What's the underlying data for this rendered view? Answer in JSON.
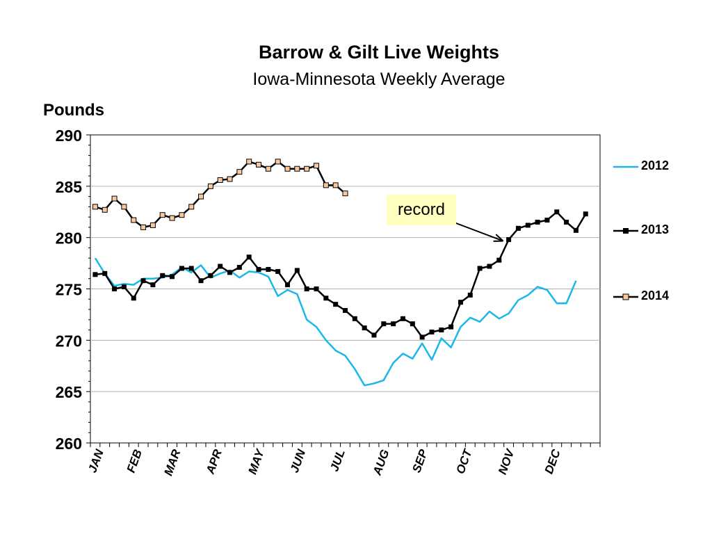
{
  "chart_data": {
    "type": "line",
    "title": "Barrow & Gilt Live Weights",
    "subtitle": "Iowa-Minnesota Weekly Average",
    "ylabel": "Pounds",
    "ylim": [
      260,
      290
    ],
    "yticks": [
      260,
      265,
      270,
      275,
      280,
      285,
      290
    ],
    "month_labels": [
      "JAN",
      "FEB",
      "MAR",
      "APR",
      "MAY",
      "JUN",
      "JUL",
      "AUG",
      "SEP",
      "OCT",
      "NOV",
      "DEC"
    ],
    "x_weeks": [
      1,
      2,
      3,
      4,
      5,
      6,
      7,
      8,
      9,
      10,
      11,
      12,
      13,
      14,
      15,
      16,
      17,
      18,
      19,
      20,
      21,
      22,
      23,
      24,
      25,
      26,
      27,
      28,
      29,
      30,
      31,
      32,
      33,
      34,
      35,
      36,
      37,
      38,
      39,
      40,
      41,
      42,
      43,
      44,
      45,
      46,
      47,
      48,
      49,
      50,
      51,
      52,
      53
    ],
    "grid": true,
    "legend_position": "right",
    "annotation": {
      "text": "record",
      "target_series": "2013",
      "target_week": 44
    },
    "series": [
      {
        "name": "2012",
        "color": "#1ab8e8",
        "marker": "none",
        "values": [
          278.0,
          276.5,
          275.3,
          275.5,
          275.4,
          276.0,
          276.0,
          276.1,
          276.4,
          277.1,
          276.6,
          277.3,
          276.1,
          276.5,
          276.8,
          276.1,
          276.7,
          276.6,
          276.2,
          274.3,
          274.9,
          274.5,
          272.0,
          271.3,
          270.0,
          269.0,
          268.5,
          267.2,
          265.6,
          265.8,
          266.1,
          267.8,
          268.7,
          268.2,
          269.7,
          268.1,
          270.2,
          269.3,
          271.3,
          272.2,
          271.8,
          272.8,
          272.1,
          272.6,
          273.9,
          274.4,
          275.2,
          274.9,
          273.6,
          273.6,
          275.8
        ]
      },
      {
        "name": "2013",
        "color": "#000000",
        "marker": "square-filled",
        "values": [
          276.4,
          276.5,
          275.0,
          275.2,
          274.1,
          275.8,
          275.4,
          276.3,
          276.2,
          277.0,
          277.0,
          275.8,
          276.3,
          277.2,
          276.6,
          277.1,
          278.1,
          276.9,
          276.9,
          276.7,
          275.4,
          276.8,
          275.0,
          275.0,
          274.1,
          273.5,
          272.9,
          272.1,
          271.2,
          270.5,
          271.6,
          271.6,
          272.1,
          271.6,
          270.3,
          270.8,
          271.0,
          271.3,
          273.7,
          274.4,
          277.0,
          277.2,
          277.8,
          279.8,
          280.9,
          281.2,
          281.5,
          281.7,
          282.5,
          281.5,
          280.7,
          282.3
        ]
      },
      {
        "name": "2014",
        "color": "#000000",
        "fill": "#f8c8a0",
        "marker": "square-open",
        "values": [
          283.0,
          282.7,
          283.8,
          283.0,
          281.7,
          281.0,
          281.2,
          282.2,
          281.9,
          282.2,
          283.0,
          284.0,
          285.0,
          285.6,
          285.7,
          286.4,
          287.4,
          287.1,
          286.7,
          287.4,
          286.7,
          286.7,
          286.7,
          287.0,
          285.1,
          285.1,
          284.3
        ]
      }
    ]
  }
}
